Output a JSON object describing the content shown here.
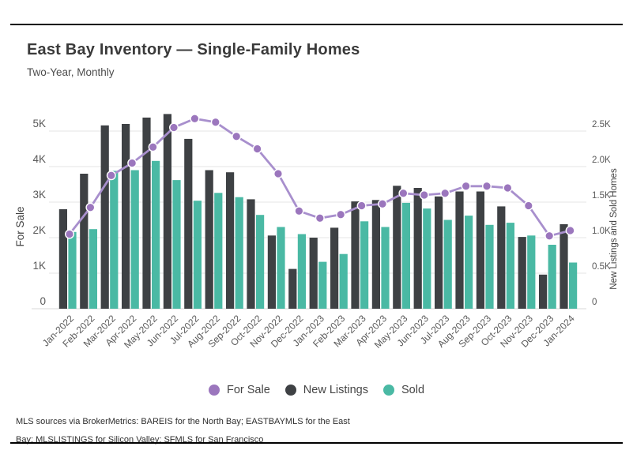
{
  "header": {
    "title": "East Bay Inventory — Single-Family Homes",
    "subtitle": "Two-Year, Monthly"
  },
  "chart_data": {
    "type": "bar",
    "subtype": "grouped bars with line overlay, dual y-axes",
    "categories": [
      "Jan-2022",
      "Feb-2022",
      "Mar-2022",
      "Apr-2022",
      "May-2022",
      "Jun-2022",
      "Jul-2022",
      "Aug-2022",
      "Sep-2022",
      "Oct-2022",
      "Nov-2022",
      "Dec-2022",
      "Jan-2023",
      "Feb-2023",
      "Mar-2023",
      "Apr-2023",
      "May-2023",
      "Jun-2023",
      "Jul-2023",
      "Aug-2023",
      "Sep-2023",
      "Oct-2023",
      "Nov-2023",
      "Dec-2023",
      "Jan-2024"
    ],
    "series": [
      {
        "name": "For Sale",
        "type": "line",
        "axis": "left",
        "color": "#9b76bd",
        "line_color": "#a88fcd",
        "values": [
          2100,
          2850,
          3750,
          4100,
          4550,
          5100,
          5350,
          5250,
          4850,
          4500,
          3800,
          2750,
          2550,
          2650,
          2900,
          2950,
          3250,
          3200,
          3250,
          3450,
          3450,
          3400,
          2900,
          2050,
          2200
        ]
      },
      {
        "name": "New Listings",
        "type": "bar",
        "axis": "right",
        "color": "#3e4144",
        "values": [
          1400,
          1900,
          2580,
          2600,
          2690,
          2740,
          2390,
          1950,
          1920,
          1540,
          1030,
          560,
          1000,
          1140,
          1510,
          1530,
          1730,
          1700,
          1580,
          1650,
          1650,
          1440,
          1010,
          480,
          1190
        ]
      },
      {
        "name": "Sold",
        "type": "bar",
        "axis": "right",
        "color": "#4ab9a4",
        "values": [
          1080,
          1120,
          1940,
          1950,
          2080,
          1810,
          1520,
          1630,
          1570,
          1320,
          1150,
          1050,
          660,
          770,
          1230,
          1150,
          1490,
          1410,
          1250,
          1310,
          1180,
          1210,
          1030,
          900,
          650
        ]
      }
    ],
    "left_axis": {
      "label": "For Sale",
      "ticks": [
        "0",
        "1K",
        "2K",
        "3K",
        "4K",
        "5K"
      ],
      "min": 0,
      "max": 5000
    },
    "right_axis": {
      "label": "New Listings and Sold Homes",
      "ticks": [
        "0",
        "0.5K",
        "1.0K",
        "1.5K",
        "2.0K",
        "2.5K"
      ],
      "min": 0,
      "max": 2500
    },
    "grid": true,
    "legend_position": "bottom"
  },
  "footnote": {
    "line1": "MLS sources via BrokerMetrics: BAREIS for the North Bay; EASTBAYMLS for the East",
    "line2": "Bay; MLSLISTINGS for Silicon Valley; SFMLS for San Francisco"
  },
  "colors": {
    "grid_line": "#ebebeb",
    "baseline": "#e0e0e0",
    "tick_text": "#595959",
    "axis_title_text": "#3f3f3f",
    "rule": "#000000"
  }
}
